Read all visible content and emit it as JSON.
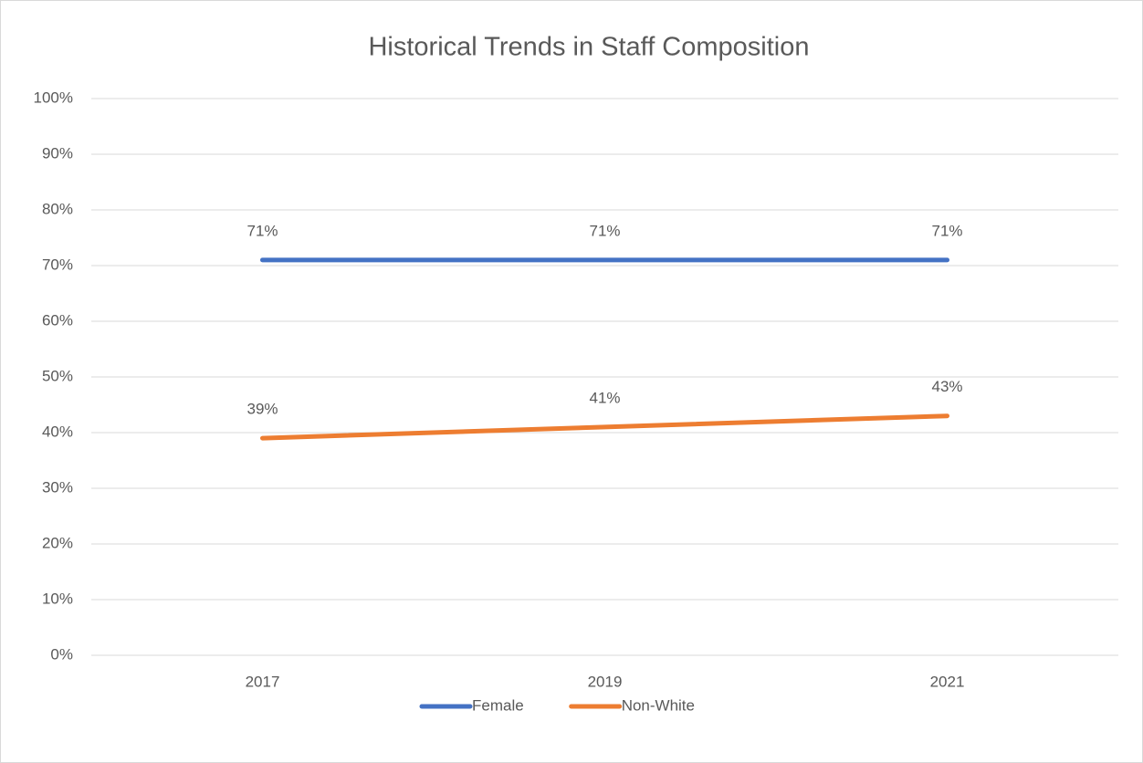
{
  "chart_data": {
    "type": "line",
    "title": "Historical Trends in Staff Composition",
    "categories": [
      "2017",
      "2019",
      "2021"
    ],
    "series": [
      {
        "name": "Female",
        "color": "#4472c4",
        "values": [
          71,
          71,
          71
        ],
        "value_labels": [
          "71%",
          "71%",
          "71%"
        ]
      },
      {
        "name": "Non-White",
        "color": "#ed7d31",
        "values": [
          39,
          41,
          43
        ],
        "value_labels": [
          "39%",
          "41%",
          "43%"
        ]
      }
    ],
    "ylim": [
      0,
      100
    ],
    "yticks": [
      {
        "value": 0,
        "label": "0%"
      },
      {
        "value": 10,
        "label": "10%"
      },
      {
        "value": 20,
        "label": "20%"
      },
      {
        "value": 30,
        "label": "30%"
      },
      {
        "value": 40,
        "label": "40%"
      },
      {
        "value": 50,
        "label": "50%"
      },
      {
        "value": 60,
        "label": "60%"
      },
      {
        "value": 70,
        "label": "70%"
      },
      {
        "value": 80,
        "label": "80%"
      },
      {
        "value": 90,
        "label": "90%"
      },
      {
        "value": 100,
        "label": "100%"
      }
    ],
    "grid": true,
    "legend": "bottom"
  }
}
